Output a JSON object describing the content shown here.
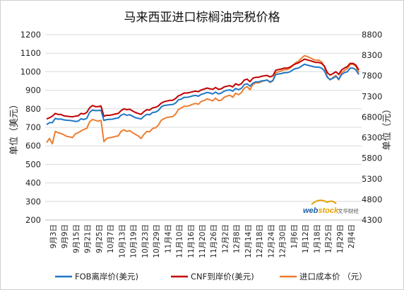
{
  "chart_data": {
    "type": "line",
    "title": "马来西亚进口棕榈油完税价格",
    "ylabel_left": "单位（美元）",
    "ylabel_right": "单位（元）",
    "ylim_left": [
      200,
      1200
    ],
    "yticks_left": [
      200,
      300,
      400,
      500,
      600,
      700,
      800,
      900,
      1000,
      1100,
      1200
    ],
    "ylim_right": [
      4300,
      8800
    ],
    "yticks_right": [
      4300,
      4800,
      5300,
      5800,
      6300,
      6800,
      7300,
      7800,
      8300,
      8800
    ],
    "x_tick_labels": [
      "9月3日",
      "9月9日",
      "9月15日",
      "9月21日",
      "9月25日",
      "10月7日",
      "10月13日",
      "10月19日",
      "10月23日",
      "10月29日",
      "11月4日",
      "11月10日",
      "11月16日",
      "11月20日",
      "11月26日",
      "12月2日",
      "12月8日",
      "12月14日",
      "12月18日",
      "12月24日",
      "12月30日",
      "1月6日",
      "1月12日",
      "1月18日",
      "1月25日",
      "1月29日",
      "2月4日"
    ],
    "legend_position": "bottom",
    "series": [
      {
        "name": "FOB离岸价(美元)",
        "axis": "left",
        "color": "#1f77c4",
        "values": [
          715,
          725,
          725,
          748,
          744,
          745,
          740,
          738,
          737,
          735,
          732,
          733,
          746,
          742,
          748,
          780,
          793,
          790,
          790,
          792,
          737,
          742,
          743,
          744,
          748,
          750,
          765,
          772,
          765,
          768,
          760,
          752,
          748,
          745,
          760,
          770,
          768,
          780,
          782,
          790,
          810,
          818,
          820,
          822,
          823,
          830,
          848,
          852,
          862,
          862,
          865,
          870,
          872,
          868,
          878,
          882,
          888,
          885,
          880,
          890,
          880,
          885,
          895,
          900,
          902,
          895,
          910,
          903,
          910,
          930,
          935,
          922,
          938,
          945,
          945,
          950,
          952,
          955,
          945,
          952,
          985,
          988,
          990,
          995,
          995,
          1000,
          1010,
          1018,
          1020,
          1030,
          1040,
          1036,
          1032,
          1028,
          1025,
          1025,
          1020,
          1005,
          970,
          958,
          965,
          975,
          960,
          985,
          995,
          1000,
          1020,
          1020,
          1010,
          985
        ]
      },
      {
        "name": "CNF到岸价(美元)",
        "axis": "left",
        "color": "#c00000",
        "values": [
          745,
          752,
          760,
          775,
          770,
          770,
          762,
          760,
          758,
          757,
          760,
          762,
          775,
          772,
          780,
          805,
          818,
          812,
          812,
          815,
          760,
          765,
          765,
          768,
          772,
          775,
          790,
          800,
          795,
          798,
          788,
          780,
          775,
          770,
          785,
          795,
          793,
          805,
          808,
          815,
          830,
          838,
          842,
          845,
          846,
          855,
          870,
          876,
          885,
          885,
          888,
          892,
          895,
          892,
          902,
          906,
          912,
          908,
          905,
          915,
          905,
          908,
          918,
          922,
          925,
          918,
          935,
          928,
          935,
          955,
          960,
          946,
          965,
          970,
          970,
          975,
          978,
          980,
          972,
          978,
          1008,
          1012,
          1015,
          1020,
          1020,
          1025,
          1035,
          1043,
          1048,
          1058,
          1068,
          1064,
          1060,
          1055,
          1050,
          1050,
          1045,
          1030,
          995,
          982,
          990,
          1000,
          985,
          1010,
          1020,
          1028,
          1045,
          1045,
          1035,
          1010
        ]
      },
      {
        "name": "进口成本价 （元）",
        "axis": "right",
        "color": "#ed7d31",
        "values": [
          6180,
          6280,
          6150,
          6450,
          6420,
          6400,
          6370,
          6330,
          6320,
          6300,
          6390,
          6420,
          6460,
          6500,
          6520,
          6680,
          6740,
          6720,
          6700,
          6720,
          6200,
          6280,
          6300,
          6310,
          6330,
          6340,
          6450,
          6490,
          6450,
          6470,
          6420,
          6380,
          6340,
          6280,
          6380,
          6450,
          6440,
          6520,
          6540,
          6600,
          6720,
          6760,
          6790,
          6800,
          6810,
          6870,
          6980,
          7020,
          7060,
          7060,
          7080,
          7110,
          7130,
          7110,
          7180,
          7200,
          7240,
          7220,
          7190,
          7260,
          7200,
          7210,
          7280,
          7310,
          7330,
          7280,
          7380,
          7340,
          7390,
          7500,
          7540,
          7460,
          7590,
          7630,
          7630,
          7660,
          7680,
          7700,
          7640,
          7680,
          7880,
          7900,
          7920,
          7950,
          7950,
          7990,
          8050,
          8120,
          8160,
          8230,
          8290,
          8270,
          8240,
          8200,
          8180,
          8180,
          8140,
          8020,
          7780,
          7700,
          7760,
          7810,
          7700,
          7880,
          7930,
          7980,
          8080,
          8080,
          8030,
          7880
        ]
      }
    ]
  },
  "watermark": {
    "brand_web": "web",
    "brand_stock": "stock",
    "brand_cn": "文华财经"
  }
}
